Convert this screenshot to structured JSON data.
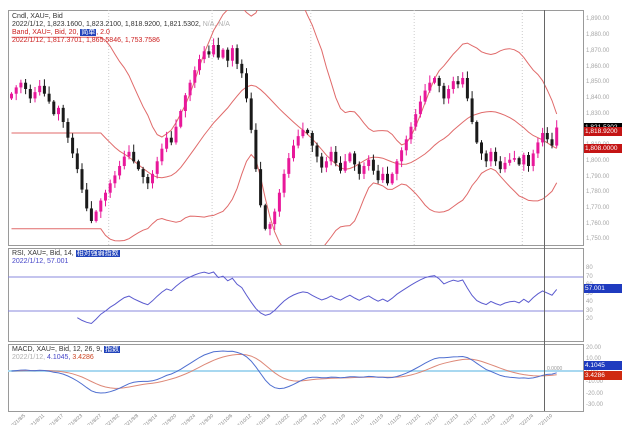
{
  "colors": {
    "up": "#e8189a",
    "down": "#1a1a1a",
    "band": "#e06a6a",
    "rsi": "#5b5bcf",
    "rsi_level": "#8888dd",
    "macd": "#4f6fd0",
    "macd_signal": "#dd8877",
    "macd_zero": "#a8d8f0",
    "grid": "#cccccc",
    "crosshair": "#666666",
    "panel_border": "#9a9a9a",
    "last_price_bg": "#000000",
    "alert_bg": "#c41414",
    "rsi_label_bg": "#1f3bbf",
    "macd_label_bg": "#1f3bbf",
    "macd_signal_label_bg": "#cf2a10"
  },
  "main_panel": {
    "legend": {
      "line1": "Cndl, XAU=, Bid",
      "line2": "2022/1/12, 1,823.1600, 1,823.2100, 1,818.9200, 1,821.5302,",
      "line2_extra": " N/A, N/A",
      "line3_prefix": "Band, XAU=, Bid, 20, ",
      "line3_highlight": "简单",
      "line3_suffix": ", 2.0",
      "line4": "2022/1/12, 1,817.3701, 1,865.5846, 1,753.7586"
    },
    "price_axis": {
      "ticks": [
        {
          "v": 1890,
          "t": "1,890.00"
        },
        {
          "v": 1880,
          "t": "1,880.00"
        },
        {
          "v": 1870,
          "t": "1,870.00"
        },
        {
          "v": 1860,
          "t": "1,860.00"
        },
        {
          "v": 1850,
          "t": "1,850.00"
        },
        {
          "v": 1840,
          "t": "1,840.00"
        },
        {
          "v": 1830,
          "t": "1,830.00"
        },
        {
          "v": 1820,
          "t": "1,820.00"
        },
        {
          "v": 1810,
          "t": "1,810.00"
        },
        {
          "v": 1800,
          "t": "1,800.00"
        },
        {
          "v": 1790,
          "t": "1,790.00"
        },
        {
          "v": 1780,
          "t": "1,780.00"
        },
        {
          "v": 1770,
          "t": "1,770.00"
        },
        {
          "v": 1760,
          "t": "1,760.00"
        },
        {
          "v": 1750,
          "t": "1,750.00"
        }
      ],
      "last_price": {
        "v": 1821.5302,
        "t": "1,821.5302"
      },
      "alerts": [
        {
          "v": 1818.92,
          "t": "1,818.9200"
        },
        {
          "v": 1808.0,
          "t": "1,808.0000"
        }
      ]
    }
  },
  "rsi_panel": {
    "legend": {
      "line1_prefix": "RSI, XAU=, Bid, 14, ",
      "line1_highlight": "相对强弱指数",
      "line2": "2022/1/12, 57.001"
    },
    "axis_ticks": [
      {
        "v": 80,
        "t": "80"
      },
      {
        "v": 70,
        "t": "70"
      },
      {
        "v": 60,
        "t": "60"
      },
      {
        "v": 50,
        "t": "50"
      },
      {
        "v": 40,
        "t": "40"
      },
      {
        "v": 30,
        "t": "30"
      },
      {
        "v": 20,
        "t": "20"
      }
    ],
    "value_label": "57.001"
  },
  "macd_panel": {
    "legend": {
      "line1_prefix": "MACD, XAU=, Bid, 12, 26, 9, ",
      "line1_highlight": "指数",
      "line2_date": "2022/1/12, ",
      "line2_macd": "4.1045, ",
      "line2_signal": "3.4286"
    },
    "axis_ticks": [
      {
        "v": 20,
        "t": "20.00"
      },
      {
        "v": 10,
        "t": "10.00"
      },
      {
        "v": 0,
        "t": "0.00"
      },
      {
        "v": -10,
        "t": "-10.00"
      },
      {
        "v": -20,
        "t": "-20.00"
      },
      {
        "v": -30,
        "t": "-30.00"
      }
    ],
    "macd_label": "4.1045",
    "signal_label": "3.4286",
    "zero_label": "0.0000"
  },
  "x_axis": {
    "labels": [
      {
        "i": 2,
        "t": "2021/8/5"
      },
      {
        "i": 6,
        "t": "2021/8/11"
      },
      {
        "i": 10,
        "t": "2021/8/17"
      },
      {
        "i": 14,
        "t": "2021/8/23"
      },
      {
        "i": 18,
        "t": "2021/8/27"
      },
      {
        "i": 22,
        "t": "2021/9/2"
      },
      {
        "i": 26,
        "t": "2021/9/8"
      },
      {
        "i": 30,
        "t": "2021/9/14"
      },
      {
        "i": 34,
        "t": "2021/9/20"
      },
      {
        "i": 38,
        "t": "2021/9/24"
      },
      {
        "i": 42,
        "t": "2021/9/30"
      },
      {
        "i": 46,
        "t": "2021/10/6"
      },
      {
        "i": 50,
        "t": "2021/10/12"
      },
      {
        "i": 54,
        "t": "2021/10/18"
      },
      {
        "i": 58,
        "t": "2021/10/22"
      },
      {
        "i": 62,
        "t": "2021/10/28"
      },
      {
        "i": 66,
        "t": "2021/11/3"
      },
      {
        "i": 70,
        "t": "2021/11/9"
      },
      {
        "i": 74,
        "t": "2021/11/15"
      },
      {
        "i": 78,
        "t": "2021/11/19"
      },
      {
        "i": 82,
        "t": "2021/11/25"
      },
      {
        "i": 86,
        "t": "2021/12/1"
      },
      {
        "i": 90,
        "t": "2021/12/7"
      },
      {
        "i": 94,
        "t": "2021/12/13"
      },
      {
        "i": 98,
        "t": "2021/12/17"
      },
      {
        "i": 102,
        "t": "2021/12/23"
      },
      {
        "i": 106,
        "t": "2021/12/29"
      },
      {
        "i": 110,
        "t": "2022/1/4"
      },
      {
        "i": 114,
        "t": "2022/1/10"
      }
    ],
    "month_grid_indices": [
      21,
      43,
      64,
      86,
      109
    ]
  },
  "chart_data": [
    {
      "type": "candlestick",
      "title": "Cndl, XAU=, Bid",
      "ylim": [
        1748,
        1895
      ],
      "last_ohlc": {
        "date": "2022/1/12",
        "open": 1823.16,
        "high": 1823.21,
        "low": 1818.92,
        "close": 1821.5302
      },
      "closes": [
        1843,
        1847,
        1850,
        1846,
        1840,
        1844,
        1848,
        1843,
        1838,
        1830,
        1834,
        1825,
        1815,
        1805,
        1795,
        1782,
        1770,
        1762,
        1768,
        1775,
        1780,
        1786,
        1791,
        1797,
        1803,
        1806,
        1800,
        1795,
        1790,
        1786,
        1792,
        1800,
        1808,
        1815,
        1812,
        1822,
        1832,
        1842,
        1850,
        1858,
        1865,
        1870,
        1868,
        1874,
        1866,
        1871,
        1864,
        1872,
        1862,
        1856,
        1840,
        1820,
        1795,
        1772,
        1757,
        1760,
        1768,
        1780,
        1792,
        1802,
        1810,
        1816,
        1820,
        1818,
        1810,
        1803,
        1796,
        1800,
        1806,
        1799,
        1794,
        1800,
        1805,
        1798,
        1792,
        1797,
        1801,
        1794,
        1788,
        1792,
        1786,
        1792,
        1800,
        1807,
        1814,
        1822,
        1830,
        1838,
        1845,
        1850,
        1853,
        1848,
        1840,
        1846,
        1851,
        1849,
        1853,
        1840,
        1825,
        1812,
        1805,
        1800,
        1806,
        1800,
        1795,
        1799,
        1801,
        1802,
        1798,
        1804,
        1797,
        1805,
        1812,
        1818,
        1814,
        1810,
        1821.5
      ],
      "overlay": {
        "name": "Band",
        "period": 20,
        "method": "简单",
        "deviation": 2.0,
        "last_values": {
          "middle": 1817.3701,
          "upper": 1865.5846,
          "lower": 1753.7586
        }
      }
    },
    {
      "type": "line",
      "title": "RSI, XAU=, Bid, 14",
      "ylim": [
        0,
        100
      ],
      "levels": [
        30,
        70
      ],
      "last_value": 57.001,
      "note": "series derived from candlestick closes with RSI(14)"
    },
    {
      "type": "line",
      "title": "MACD, XAU=, Bid, 12, 26, 9",
      "last_values": {
        "macd": 4.1045,
        "signal": 3.4286
      },
      "note": "series derived from candlestick closes with MACD(12,26,9)"
    }
  ]
}
